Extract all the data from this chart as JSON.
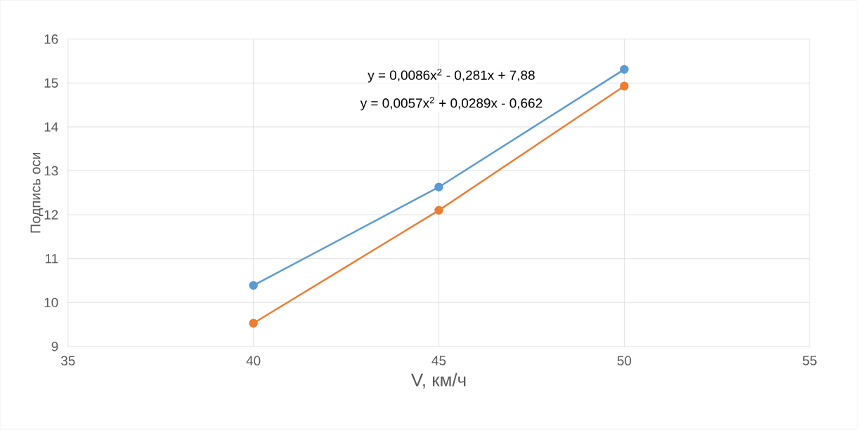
{
  "chart_data": {
    "type": "line",
    "xlabel": "V, км/ч",
    "ylabel": "Подпись оси",
    "x": [
      40,
      45,
      50
    ],
    "series": [
      {
        "color": "#5b9bd5",
        "values": [
          10.39,
          12.63,
          15.31
        ]
      },
      {
        "color": "#ed7d31",
        "values": [
          9.53,
          12.1,
          14.93
        ]
      }
    ],
    "annotations": [
      "y = 0,0086x$^{2}$ - 0,281x + 7,88",
      "y = 0,0057x$^{2}$ + 0,0289x - 0,662"
    ],
    "xlim": [
      35,
      55
    ],
    "ylim": [
      9,
      16
    ],
    "xticks": [
      35,
      40,
      45,
      50,
      55
    ],
    "yticks": [
      9,
      10,
      11,
      12,
      13,
      14,
      15,
      16
    ],
    "grid": true,
    "marker": "circle",
    "line_style": "solid"
  }
}
